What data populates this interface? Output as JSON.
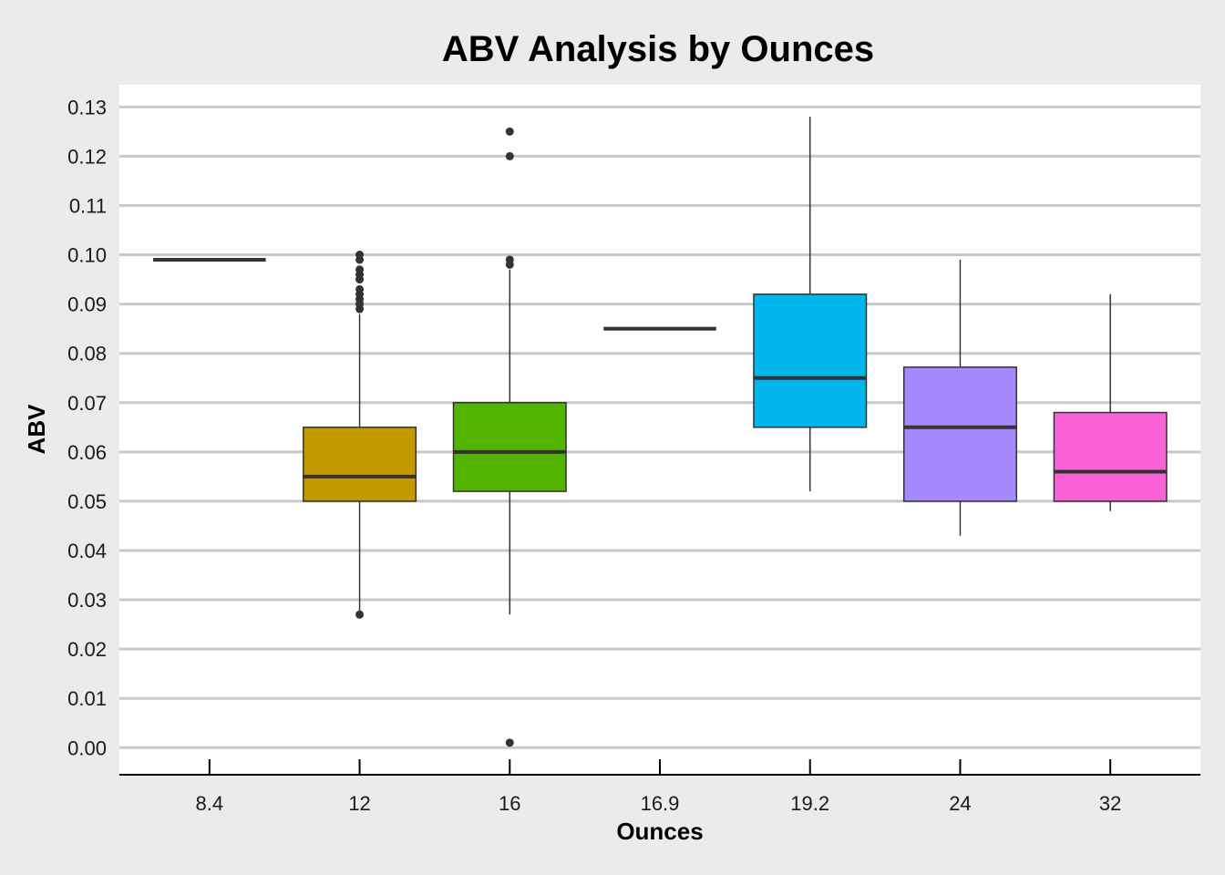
{
  "chart_data": {
    "type": "boxplot",
    "title": "ABV Analysis by Ounces",
    "xlabel": "Ounces",
    "ylabel": "ABV",
    "ylim": [
      -0.0055,
      0.1345
    ],
    "y_ticks": [
      "0.00",
      "0.01",
      "0.02",
      "0.03",
      "0.04",
      "0.05",
      "0.06",
      "0.07",
      "0.08",
      "0.09",
      "0.10",
      "0.11",
      "0.12",
      "0.13"
    ],
    "grid": "horizontal",
    "legend": "none",
    "categories": [
      "8.4",
      "12",
      "16",
      "16.9",
      "19.2",
      "24",
      "32"
    ],
    "boxes": [
      {
        "category": "8.4",
        "min": 0.099,
        "q1": 0.099,
        "median": 0.099,
        "q3": 0.099,
        "max": 0.099,
        "outliers": [],
        "color": "#F8766D"
      },
      {
        "category": "12",
        "min": 0.027,
        "q1": 0.05,
        "median": 0.055,
        "q3": 0.065,
        "max": 0.088,
        "outliers": [
          0.027,
          0.089,
          0.09,
          0.091,
          0.092,
          0.093,
          0.095,
          0.096,
          0.097,
          0.099,
          0.1
        ],
        "color": "#C49A00"
      },
      {
        "category": "16",
        "min": 0.027,
        "q1": 0.052,
        "median": 0.06,
        "q3": 0.07,
        "max": 0.097,
        "outliers": [
          0.001,
          0.098,
          0.099,
          0.12,
          0.125
        ],
        "color": "#53B400"
      },
      {
        "category": "16.9",
        "min": 0.085,
        "q1": 0.085,
        "median": 0.085,
        "q3": 0.085,
        "max": 0.085,
        "outliers": [],
        "color": "#00C094"
      },
      {
        "category": "19.2",
        "min": 0.052,
        "q1": 0.065,
        "median": 0.075,
        "q3": 0.092,
        "max": 0.128,
        "outliers": [],
        "color": "#00B6EB"
      },
      {
        "category": "24",
        "min": 0.043,
        "q1": 0.05,
        "median": 0.065,
        "q3": 0.0772,
        "max": 0.099,
        "outliers": [],
        "color": "#A58AFF"
      },
      {
        "category": "32",
        "min": 0.048,
        "q1": 0.05,
        "median": 0.056,
        "q3": 0.068,
        "max": 0.092,
        "outliers": [],
        "color": "#FB61D7"
      }
    ]
  }
}
